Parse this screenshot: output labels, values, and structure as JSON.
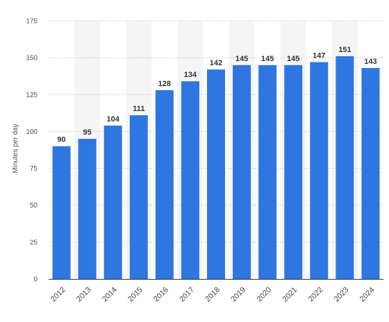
{
  "chart_data": {
    "type": "bar",
    "categories": [
      "2012",
      "2013",
      "2014",
      "2015",
      "2016",
      "2017",
      "2018",
      "2019",
      "2020",
      "2021",
      "2022",
      "2023",
      "2024"
    ],
    "values": [
      90,
      95,
      104,
      111,
      128,
      134,
      142,
      145,
      145,
      145,
      147,
      151,
      143
    ],
    "title": "",
    "xlabel": "",
    "ylabel": "Minutes per day",
    "ylim": [
      0,
      175
    ],
    "yticks": [
      0,
      25,
      50,
      75,
      100,
      125,
      150,
      175
    ],
    "grid": true,
    "data_labels": true,
    "bar_color": "#2e77e0",
    "band_color": "#f5f5f5",
    "legend": "none"
  }
}
